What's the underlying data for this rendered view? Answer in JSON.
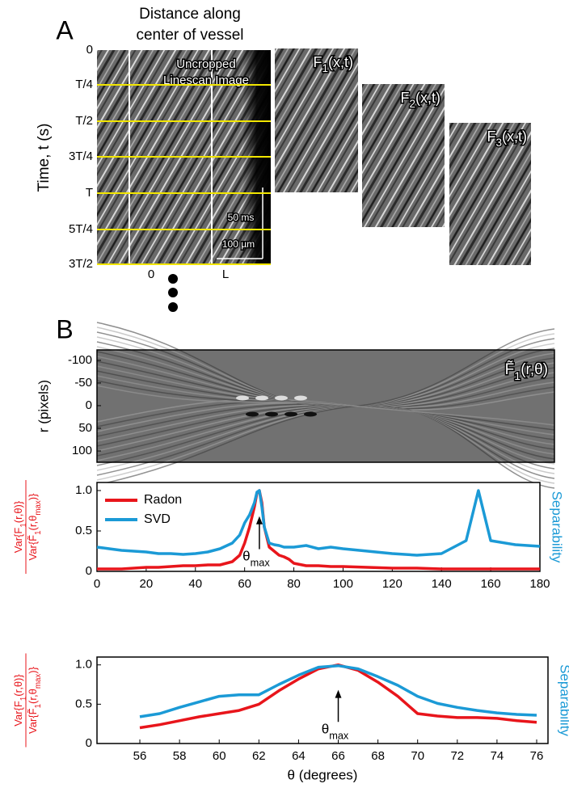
{
  "panel_a": {
    "label": "A",
    "x_title": [
      "Distance along",
      "center of vessel"
    ],
    "y_title": "Time, t (s)",
    "time_ticks": [
      "0",
      "T/4",
      "T/2",
      "3T/4",
      "T",
      "5T/4",
      "3T/2"
    ],
    "x_ticks": [
      "0",
      "L"
    ],
    "image_label": [
      "Uncropped",
      "Linescan Image"
    ],
    "scale_time": "50 ms",
    "scale_distance": "100 µm",
    "filtered": [
      [
        "F",
        "1",
        "(x,t)"
      ],
      [
        "F",
        "2",
        "(x,t)"
      ],
      [
        "F",
        "3",
        "(x,t)"
      ]
    ]
  },
  "panel_b": {
    "label": "B"
  },
  "chart_data": [
    {
      "type": "image",
      "title": [
        "F̃",
        "1",
        "(r,θ)"
      ],
      "ylabel": "r (pixels)",
      "ylim": [
        -123,
        125
      ],
      "yticks": [
        -100,
        -50,
        0,
        50,
        100
      ]
    },
    {
      "type": "line",
      "x": [
        0,
        5,
        10,
        15,
        20,
        25,
        30,
        35,
        40,
        45,
        50,
        55,
        58,
        60,
        62,
        64,
        65,
        66,
        67,
        68,
        70,
        72,
        74,
        76,
        78,
        80,
        85,
        90,
        95,
        100,
        110,
        120,
        130,
        140,
        150,
        155,
        160,
        170,
        180
      ],
      "xlim": [
        0,
        180
      ],
      "xticks": [
        0,
        20,
        40,
        60,
        80,
        100,
        120,
        140,
        160,
        180
      ],
      "ylim": [
        0,
        1.1
      ],
      "yticks": [
        0,
        0.5,
        {
          "value": 1,
          "label": "1.0"
        }
      ],
      "ylabel_numerator": [
        "Var{F",
        "1",
        "(r,θ)}"
      ],
      "ylabel_denominator": [
        "Var{F̃",
        "1",
        "(r,θ",
        "max",
        ")}"
      ],
      "y2label": "Separability",
      "legend": "upper left",
      "annotation": [
        "θ",
        "max"
      ],
      "series": [
        {
          "name": "Radon",
          "color": "#e8151b",
          "values": [
            0.03,
            0.03,
            0.03,
            0.04,
            0.05,
            0.05,
            0.06,
            0.07,
            0.07,
            0.08,
            0.08,
            0.12,
            0.2,
            0.35,
            0.55,
            0.8,
            0.97,
            1.0,
            0.85,
            0.55,
            0.3,
            0.25,
            0.2,
            0.18,
            0.15,
            0.1,
            0.07,
            0.07,
            0.06,
            0.06,
            0.05,
            0.04,
            0.04,
            0.03,
            0.03,
            0.03,
            0.03,
            0.03,
            0.03
          ]
        },
        {
          "name": "SVD",
          "color": "#1b9ad6",
          "values": [
            0.3,
            0.28,
            0.26,
            0.25,
            0.24,
            0.22,
            0.22,
            0.21,
            0.22,
            0.24,
            0.28,
            0.35,
            0.45,
            0.6,
            0.7,
            0.85,
            0.98,
            1.0,
            0.8,
            0.55,
            0.35,
            0.33,
            0.32,
            0.3,
            0.3,
            0.3,
            0.32,
            0.28,
            0.3,
            0.28,
            0.25,
            0.22,
            0.2,
            0.22,
            0.38,
            1.0,
            0.38,
            0.33,
            0.31
          ]
        }
      ]
    },
    {
      "type": "line",
      "x": [
        56,
        57,
        58,
        59,
        60,
        61,
        62,
        63,
        64,
        65,
        66,
        67,
        68,
        69,
        70,
        71,
        72,
        73,
        74,
        75,
        76
      ],
      "xlim": [
        53.84,
        76.57
      ],
      "xticks": [
        56,
        58,
        60,
        62,
        64,
        66,
        68,
        70,
        72,
        74,
        76
      ],
      "ylim": [
        0,
        1.1
      ],
      "yticks": [
        0,
        0.5,
        {
          "value": 1,
          "label": "1.0"
        }
      ],
      "ylabel_numerator": [
        "Var{F",
        "1",
        "(r,θ)}"
      ],
      "ylabel_denominator": [
        "Var{F̃",
        "1",
        "(r,θ",
        "max",
        ")}"
      ],
      "y2label": "Separability",
      "xlabel": "θ (degrees)",
      "annotation": [
        "θ",
        "max"
      ],
      "series": [
        {
          "name": "Radon",
          "color": "#e8151b",
          "values": [
            0.2,
            0.24,
            0.29,
            0.34,
            0.38,
            0.42,
            0.5,
            0.67,
            0.82,
            0.95,
            1.0,
            0.93,
            0.78,
            0.6,
            0.38,
            0.35,
            0.33,
            0.33,
            0.32,
            0.29,
            0.27
          ]
        },
        {
          "name": "SVD",
          "color": "#1b9ad6",
          "values": [
            0.34,
            0.38,
            0.46,
            0.53,
            0.6,
            0.62,
            0.62,
            0.75,
            0.87,
            0.97,
            0.99,
            0.95,
            0.85,
            0.74,
            0.6,
            0.51,
            0.46,
            0.42,
            0.39,
            0.37,
            0.36
          ]
        }
      ]
    }
  ]
}
